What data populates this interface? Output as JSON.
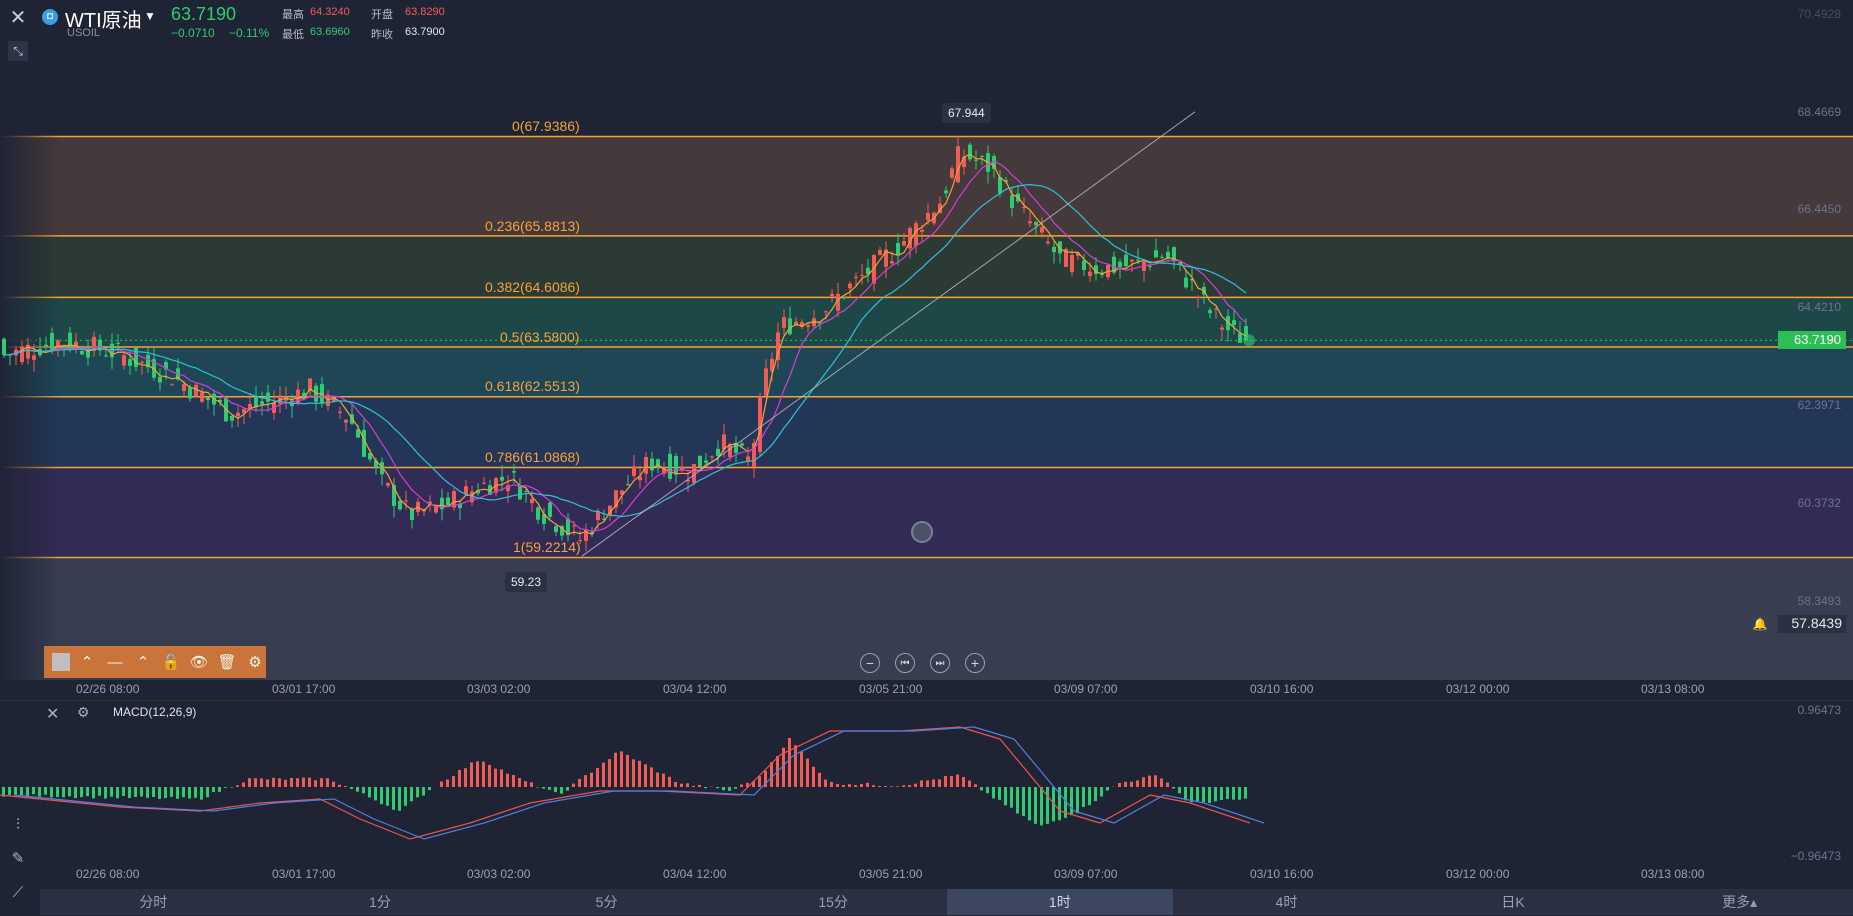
{
  "header": {
    "symbol_name": "WTI原油",
    "symbol_code": "USOIL",
    "price": "63.7190",
    "change": "−0.0710",
    "change_pct": "−0.11%",
    "stats": [
      {
        "label": "最高",
        "value": "64.3240",
        "tone": "red"
      },
      {
        "label": "开盘",
        "value": "63.8290",
        "tone": "red"
      },
      {
        "label": "最低",
        "value": "63.6960",
        "tone": "green"
      },
      {
        "label": "昨收",
        "value": "63.7900",
        "tone": "white"
      }
    ]
  },
  "price_axis": [
    "70.4928",
    "68.4669",
    "66.4450",
    "64.4210",
    "62.3971",
    "60.3732",
    "58.3493"
  ],
  "current_price_tag": "63.7190",
  "alert_price": "57.8439",
  "fib_levels": [
    {
      "label": "0(67.9386)",
      "price": 67.9386
    },
    {
      "label": "0.236(65.8813)",
      "price": 65.8813
    },
    {
      "label": "0.382(64.6086)",
      "price": 64.6086
    },
    {
      "label": "0.5(63.5800)",
      "price": 63.58
    },
    {
      "label": "0.618(62.5513)",
      "price": 62.5513
    },
    {
      "label": "0.786(61.0868)",
      "price": 61.0868
    },
    {
      "label": "1(59.2214)",
      "price": 59.2214
    }
  ],
  "high_tip": "67.944",
  "low_tip": "59.23",
  "time_axis": [
    "02/26 08:00",
    "03/01 17:00",
    "03/03 02:00",
    "03/04 12:00",
    "03/05 21:00",
    "03/09 07:00",
    "03/10 16:00",
    "03/12 00:00",
    "03/13 08:00"
  ],
  "macd": {
    "label": "MACD(12,26,9)",
    "axis_top": "0.96473",
    "axis_bottom": "−0.96473"
  },
  "tabs": [
    {
      "label": "分时",
      "active": false
    },
    {
      "label": "1分",
      "active": false
    },
    {
      "label": "5分",
      "active": false
    },
    {
      "label": "15分",
      "active": false
    },
    {
      "label": "1时",
      "active": true
    },
    {
      "label": "4时",
      "active": false
    },
    {
      "label": "日K",
      "active": false
    },
    {
      "label": "更多▴",
      "active": false
    }
  ],
  "colors": {
    "up": "#f25c54",
    "down": "#2ecc71",
    "fib": "#f5a23a",
    "ma1": "#f5a23a",
    "ma2": "#d33fd3",
    "ma3": "#2fc1d6",
    "bg": "#1f2435"
  }
}
